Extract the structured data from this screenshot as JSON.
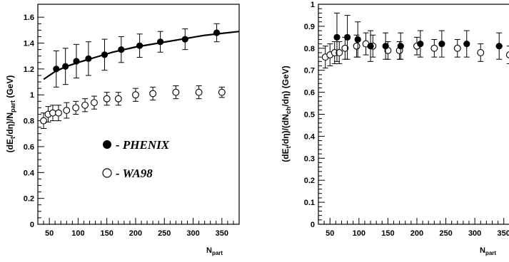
{
  "chart_data": [
    {
      "type": "scatter",
      "ylabel_parts": [
        "(dE",
        "t",
        "/dη)/N",
        "part",
        " (GeV)"
      ],
      "xlabel_parts": [
        "N",
        "part"
      ],
      "xlim": [
        30,
        380
      ],
      "ylim": [
        0,
        1.7
      ],
      "xticks": [
        "50",
        "100",
        "150",
        "200",
        "250",
        "300",
        "350"
      ],
      "xtick_values": [
        50,
        100,
        150,
        200,
        250,
        300,
        350
      ],
      "yticks": [
        "0",
        "0.2",
        "0.4",
        "0.6",
        "0.8",
        "1",
        "1.2",
        "1.4",
        "1.6"
      ],
      "ytick_values": [
        0,
        0.2,
        0.4,
        0.6,
        0.8,
        1.0,
        1.2,
        1.4,
        1.6
      ],
      "legend": [
        {
          "marker": "filled-circle",
          "label": "- PHENIX"
        },
        {
          "marker": "open-circle",
          "label": "- WA98"
        }
      ],
      "series": [
        {
          "name": "- PHENIX",
          "marker": "filled",
          "x": [
            62,
            78,
            97,
            118,
            146,
            175,
            207,
            243,
            286,
            341
          ],
          "y": [
            1.2,
            1.22,
            1.26,
            1.28,
            1.31,
            1.35,
            1.38,
            1.41,
            1.43,
            1.48
          ],
          "err": [
            0.14,
            0.14,
            0.13,
            0.13,
            0.12,
            0.1,
            0.09,
            0.08,
            0.08,
            0.07
          ],
          "xerr": [
            0,
            0,
            0,
            0,
            0,
            0,
            0,
            0,
            0,
            6
          ]
        },
        {
          "name": "- WA98",
          "marker": "open",
          "x": [
            40,
            48,
            56,
            66,
            80,
            96,
            112,
            128,
            150,
            170,
            200,
            230,
            270,
            310,
            350
          ],
          "y": [
            0.8,
            0.85,
            0.86,
            0.86,
            0.88,
            0.9,
            0.92,
            0.94,
            0.97,
            0.97,
            1.0,
            1.01,
            1.02,
            1.02,
            1.02
          ],
          "err": [
            0.06,
            0.06,
            0.06,
            0.06,
            0.06,
            0.05,
            0.05,
            0.05,
            0.05,
            0.05,
            0.05,
            0.05,
            0.05,
            0.05,
            0.04
          ],
          "xerr": []
        }
      ],
      "fit_curve": {
        "x": [
          40,
          60,
          80,
          100,
          130,
          160,
          200,
          240,
          280,
          320,
          380
        ],
        "y": [
          1.12,
          1.18,
          1.22,
          1.25,
          1.29,
          1.33,
          1.37,
          1.4,
          1.43,
          1.46,
          1.49
        ]
      }
    },
    {
      "type": "scatter",
      "ylabel_parts": [
        "(dE",
        "t",
        "/dη)/(dN",
        "ch",
        "/dη) (GeV)"
      ],
      "xlabel_parts": [
        "N",
        "part"
      ],
      "xlim": [
        30,
        375
      ],
      "ylim": [
        0,
        1.0
      ],
      "xticks": [
        "50",
        "100",
        "150",
        "200",
        "250",
        "300",
        "350"
      ],
      "xtick_values": [
        50,
        100,
        150,
        200,
        250,
        300,
        350
      ],
      "yticks": [
        "0",
        "0.1",
        "0.2",
        "0.3",
        "0.4",
        "0.5",
        "0.6",
        "0.7",
        "0.8",
        "0.9",
        "1"
      ],
      "ytick_values": [
        0,
        0.1,
        0.2,
        0.3,
        0.4,
        0.5,
        0.6,
        0.7,
        0.8,
        0.9,
        1.0
      ],
      "series": [
        {
          "marker": "filled",
          "x": [
            62,
            80,
            98,
            120,
            146,
            172,
            206,
            243,
            286,
            342
          ],
          "y": [
            0.85,
            0.85,
            0.84,
            0.81,
            0.81,
            0.81,
            0.82,
            0.82,
            0.82,
            0.81
          ],
          "err": [
            0.11,
            0.1,
            0.08,
            0.07,
            0.06,
            0.06,
            0.06,
            0.06,
            0.06,
            0.06
          ],
          "xerr": [
            0,
            0,
            0,
            0,
            0,
            0,
            0,
            0,
            0,
            6
          ]
        },
        {
          "marker": "open",
          "x": [
            42,
            50,
            58,
            66,
            76,
            96,
            112,
            124,
            150,
            170,
            200,
            230,
            270,
            310,
            360
          ],
          "y": [
            0.76,
            0.77,
            0.78,
            0.78,
            0.8,
            0.81,
            0.82,
            0.81,
            0.79,
            0.79,
            0.81,
            0.8,
            0.8,
            0.78,
            0.77
          ],
          "err": [
            0.05,
            0.05,
            0.05,
            0.05,
            0.05,
            0.05,
            0.05,
            0.05,
            0.04,
            0.04,
            0.04,
            0.04,
            0.04,
            0.04,
            0.04
          ],
          "xerr": []
        }
      ]
    }
  ]
}
